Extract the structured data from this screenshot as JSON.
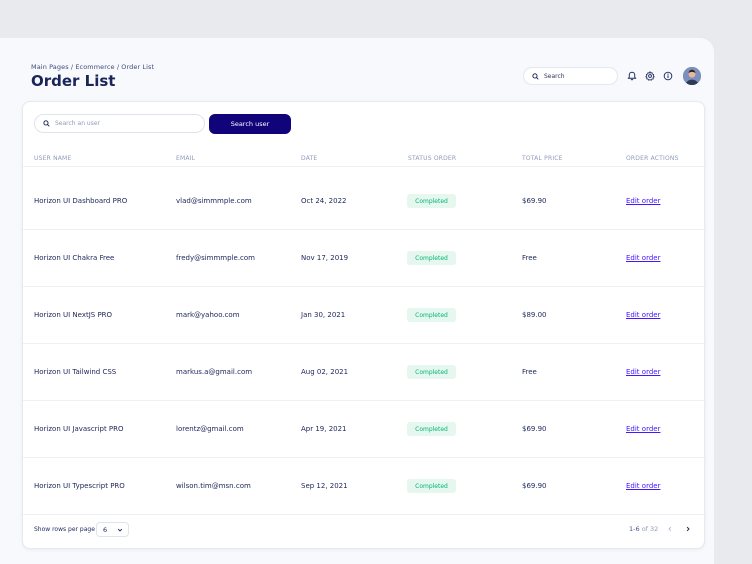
{
  "header": {
    "breadcrumb": "Main Pages / Ecommerce / Order List",
    "title": "Order List",
    "search_placeholder": "Search"
  },
  "toolbar": {
    "user_search_placeholder": "Search an user",
    "search_button": "Search user"
  },
  "table": {
    "columns": [
      "USER NAME",
      "EMAIL",
      "DATE",
      "STATUS ORDER",
      "TOTAL PRICE",
      "ORDER ACTIONS"
    ],
    "rows": [
      {
        "name": "Horizon UI Dashboard PRO",
        "email": "vlad@simmmple.com",
        "date": "Oct 24, 2022",
        "status": "Completed",
        "price": "$69.90",
        "action": "Edit order"
      },
      {
        "name": "Horizon UI Chakra Free",
        "email": "fredy@simmmple.com",
        "date": "Nov 17, 2019",
        "status": "Completed",
        "price": "Free",
        "action": "Edit order"
      },
      {
        "name": "Horizon UI NextJS PRO",
        "email": "mark@yahoo.com",
        "date": "Jan 30, 2021",
        "status": "Completed",
        "price": "$89.00",
        "action": "Edit order"
      },
      {
        "name": "Horizon UI Tailwind CSS",
        "email": "markus.a@gmail.com",
        "date": "Aug 02, 2021",
        "status": "Completed",
        "price": "Free",
        "action": "Edit order"
      },
      {
        "name": "Horizon UI Javascript PRO",
        "email": "lorentz@gmail.com",
        "date": "Apr 19, 2021",
        "status": "Completed",
        "price": "$69.90",
        "action": "Edit order"
      },
      {
        "name": "Horizon UI Typescript PRO",
        "email": "wilson.tim@msn.com",
        "date": "Sep 12, 2021",
        "status": "Completed",
        "price": "$69.90",
        "action": "Edit order"
      }
    ]
  },
  "footer": {
    "rows_label": "Show rows per page",
    "rows_value": "6",
    "range": "1-6",
    "of_label": "of 32"
  },
  "colors": {
    "primary": "#11047a",
    "link": "#4318ff",
    "success_text": "#01b574",
    "success_bg": "#e6f7ef",
    "navy_text": "#1b2559"
  },
  "icons": [
    "search-icon",
    "bell-icon",
    "gear-icon",
    "info-icon",
    "avatar",
    "chevron-down-icon",
    "chevron-left-icon",
    "chevron-right-icon"
  ]
}
